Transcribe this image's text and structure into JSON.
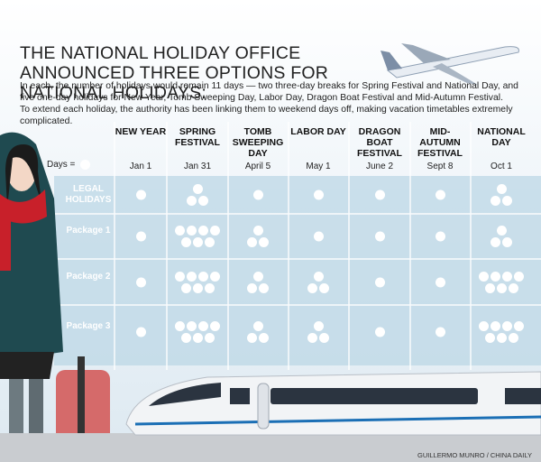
{
  "header": {
    "title": "THE NATIONAL HOLIDAY OFFICE ANNOUNCED THREE OPTIONS FOR NATIONAL HOLIDAYS:",
    "intro": [
      "In each, the number of holidays would remain 11 days — two three-day breaks for Spring Festival and National Day, and five one-day holidays for New Year, Tomb Sweeping Day, Labor Day, Dragon Boat Festival and Mid-Autumn Festival.",
      "To extend each holiday, the authority has been linking them to weekend days off, making vacation timetables extremely complicated."
    ]
  },
  "table": {
    "unit_label": "Days =",
    "columns": [
      {
        "name": "NEW YEAR",
        "date": "Jan 1"
      },
      {
        "name": "SPRING FESTIVAL",
        "date": "Jan 31"
      },
      {
        "name": "TOMB SWEEPING DAY",
        "date": "April 5"
      },
      {
        "name": "LABOR DAY",
        "date": "May 1"
      },
      {
        "name": "DRAGON BOAT FESTIVAL",
        "date": "June 2"
      },
      {
        "name": "MID-AUTUMN FESTIVAL",
        "date": "Sept 8"
      },
      {
        "name": "NATIONAL DAY",
        "date": "Oct 1"
      }
    ],
    "rows": [
      {
        "label": "LEGAL HOLIDAYS",
        "days": [
          1,
          3,
          1,
          1,
          1,
          1,
          3
        ]
      },
      {
        "label": "Package 1",
        "days": [
          1,
          7,
          3,
          1,
          1,
          1,
          3
        ]
      },
      {
        "label": "Package 2",
        "days": [
          1,
          7,
          3,
          3,
          1,
          1,
          7
        ]
      },
      {
        "label": "Package 3",
        "days": [
          1,
          7,
          3,
          3,
          1,
          1,
          7
        ]
      }
    ]
  },
  "credit": "GUILLERMO MUNRO / CHINA DAILY"
}
